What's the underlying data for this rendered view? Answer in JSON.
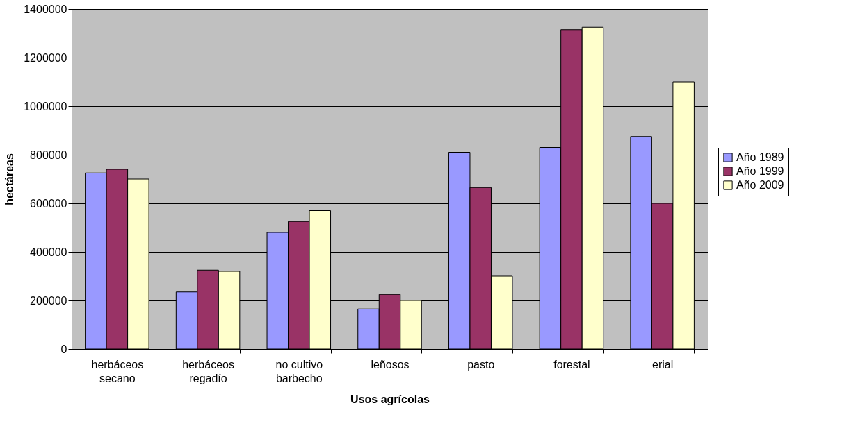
{
  "chart_data": {
    "type": "bar",
    "xlabel": "Usos agrícolas",
    "ylabel": "hectáreas",
    "categories": [
      "herbáceos\nsecano",
      "herbáceos\nregadío",
      "no cultivo\nbarbecho",
      "leñosos",
      "pasto",
      "forestal",
      "erial"
    ],
    "series": [
      {
        "name": "Año 1989",
        "color": "#9999ff",
        "values": [
          725000,
          235000,
          480000,
          165000,
          810000,
          830000,
          875000
        ]
      },
      {
        "name": "Año 1999",
        "color": "#993366",
        "values": [
          740000,
          325000,
          525000,
          225000,
          665000,
          1315000,
          600000
        ]
      },
      {
        "name": "Año 2009",
        "color": "#ffffcc",
        "values": [
          700000,
          320000,
          570000,
          200000,
          300000,
          1325000,
          1100000
        ]
      }
    ],
    "ylim": [
      0,
      1400000
    ],
    "yticks": [
      0,
      200000,
      400000,
      600000,
      800000,
      1000000,
      1200000,
      1400000
    ],
    "grid": "y",
    "legend": "right"
  }
}
